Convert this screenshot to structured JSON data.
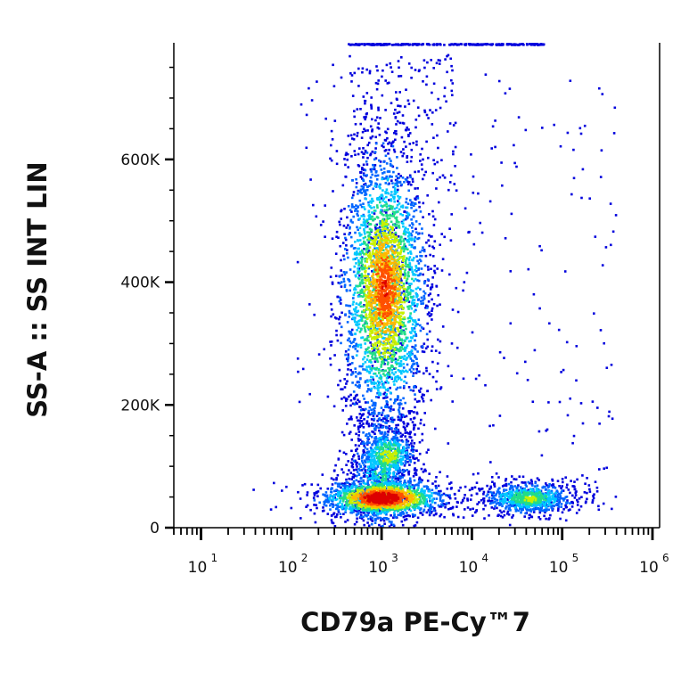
{
  "chart_data": {
    "type": "scatter",
    "subtype": "flow-cytometry-density-dot-plot",
    "xlabel": "CD79a PE-Cy™7",
    "ylabel": "SS-A :: SS INT LIN",
    "x_scale": "log",
    "y_scale": "linear",
    "xlim": [
      5,
      1200000
    ],
    "ylim": [
      0,
      790000
    ],
    "x_ticks": [
      {
        "value": 10,
        "base": "10",
        "exp": "1"
      },
      {
        "value": 100,
        "base": "10",
        "exp": "2"
      },
      {
        "value": 1000,
        "base": "10",
        "exp": "3"
      },
      {
        "value": 10000,
        "base": "10",
        "exp": "4"
      },
      {
        "value": 100000,
        "base": "10",
        "exp": "5"
      },
      {
        "value": 1000000,
        "base": "10",
        "exp": "6"
      }
    ],
    "y_ticks": [
      {
        "value": 0,
        "label": "0"
      },
      {
        "value": 200000,
        "label": "200K"
      },
      {
        "value": 400000,
        "label": "400K"
      },
      {
        "value": 600000,
        "label": "600K"
      }
    ],
    "color_scale": [
      "#0000dd",
      "#0066ff",
      "#00c8ff",
      "#22dd88",
      "#c8f000",
      "#ffb800",
      "#ff5000",
      "#dd0000"
    ],
    "grid": false,
    "legend": "none",
    "populations": [
      {
        "x_center": 1000,
        "y_center": 50000,
        "density": "highest"
      },
      {
        "x_center": 1100,
        "y_center": 390000,
        "density": "high"
      },
      {
        "x_center": 1150,
        "y_center": 120000,
        "density": "medium"
      },
      {
        "x_center": 42000,
        "y_center": 50000,
        "density": "medium"
      }
    ]
  }
}
